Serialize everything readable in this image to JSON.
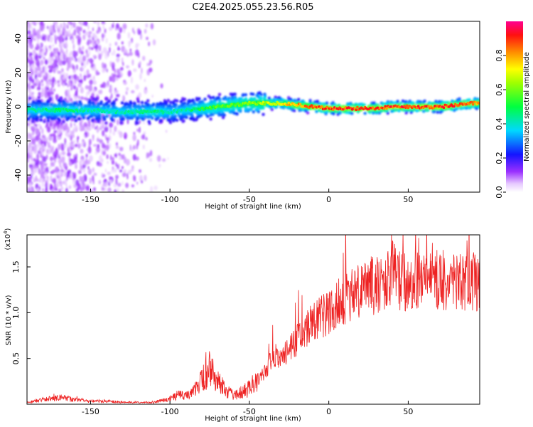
{
  "title": "C2E4.2025.055.23.56.R05",
  "chart_data": [
    {
      "type": "heatmap",
      "xlabel": "Height of straight line (km)",
      "ylabel": "Frequency (Hz)",
      "xlim": [
        -190,
        95
      ],
      "ylim": [
        -50,
        50
      ],
      "xticks": [
        -150,
        -100,
        -50,
        0,
        50
      ],
      "xtick_labels": [
        "-150",
        "-100",
        "-50",
        "0",
        "50"
      ],
      "yticks": [
        -40,
        -20,
        0,
        20,
        40
      ],
      "ytick_labels": [
        "-40",
        "-20",
        "0",
        "20",
        "40"
      ],
      "colorbar": {
        "label": "Normalized spectral amplitude",
        "range": [
          0,
          1
        ],
        "ticks": [
          0.0,
          0.2,
          0.4,
          0.6,
          0.8
        ],
        "tick_labels": [
          "0.0",
          "0.2",
          "0.4",
          "0.6",
          "0.8"
        ]
      },
      "ridge": {
        "x": [
          -185,
          -170,
          -150,
          -130,
          -110,
          -100,
          -90,
          -80,
          -70,
          -60,
          -50,
          -40,
          -30,
          -20,
          -10,
          0,
          10,
          20,
          30,
          40,
          50,
          60,
          70,
          80,
          90,
          95
        ],
        "freq": [
          -2,
          -2,
          -2,
          -3,
          -3,
          -3,
          -2,
          -1,
          0,
          1,
          2,
          2,
          2,
          1,
          0,
          -1,
          -1,
          -1,
          -1,
          0,
          0,
          0,
          0,
          1,
          2,
          2
        ],
        "amplitude": [
          0.45,
          0.5,
          0.45,
          0.45,
          0.5,
          0.45,
          0.45,
          0.55,
          0.6,
          0.62,
          0.65,
          0.7,
          0.8,
          0.85,
          0.92,
          0.95,
          0.95,
          0.95,
          0.93,
          0.95,
          0.95,
          0.95,
          0.95,
          0.95,
          0.9,
          0.85
        ]
      }
    },
    {
      "type": "line",
      "xlabel": "Height of straight line (km)",
      "ylabel": "SNR (10 * v/v)",
      "multiplier_label": "(x10",
      "multiplier_exp": "4",
      "xlim": [
        -190,
        95
      ],
      "ylim": [
        0,
        18500
      ],
      "xticks": [
        -150,
        -100,
        -50,
        0,
        50
      ],
      "xtick_labels": [
        "-150",
        "-100",
        "-50",
        "0",
        "50"
      ],
      "yticks": [
        5000,
        10000,
        15000
      ],
      "ytick_labels": [
        "0.5",
        "1.0",
        "1.5"
      ],
      "color": "#ee2222",
      "series": [
        {
          "x": [
            -190,
            -180,
            -170,
            -160,
            -150,
            -140,
            -130,
            -120,
            -110,
            -100,
            -95,
            -90,
            -85,
            -80,
            -75,
            -70,
            -65,
            -60,
            -55,
            -50,
            -45,
            -40,
            -35,
            -30,
            -25,
            -20,
            -15,
            -10,
            -5,
            0,
            5,
            10,
            15,
            20,
            25,
            30,
            35,
            40,
            45,
            50,
            55,
            60,
            65,
            70,
            75,
            80,
            85,
            90,
            95
          ],
          "values": [
            200,
            500,
            700,
            500,
            350,
            300,
            250,
            200,
            200,
            600,
            1000,
            900,
            1500,
            2500,
            3800,
            2500,
            1500,
            1000,
            1300,
            1700,
            2700,
            3500,
            5500,
            5000,
            6000,
            7000,
            8000,
            9000,
            9500,
            10000,
            11000,
            11500,
            12000,
            12500,
            13000,
            13000,
            13500,
            14500,
            13500,
            13500,
            13500,
            13500,
            14000,
            13500,
            13500,
            13000,
            13500,
            13500,
            13500
          ]
        }
      ]
    }
  ]
}
